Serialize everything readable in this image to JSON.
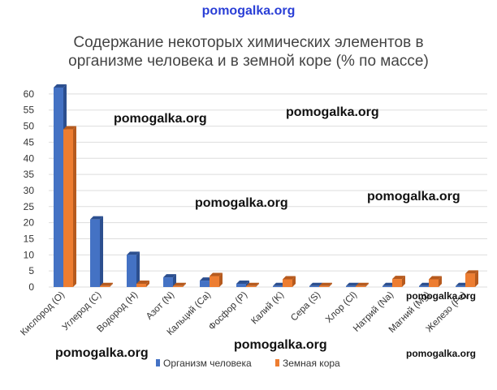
{
  "watermark_top": "pomogalka.org",
  "watermarks": [
    "pomogalka.org",
    "pomogalka.org",
    "pomogalka.org",
    "pomogalka.org",
    "pomogalka.org",
    "pomogalka.org",
    "pomogalka.org",
    "pomogalka.org"
  ],
  "colors": {
    "series1": "#4472C4",
    "series2": "#ED7D31",
    "grid": "#dddddd",
    "text": "#444444"
  },
  "chart_data": {
    "type": "bar",
    "title_line1": "Содержание некоторых химических элементов в",
    "title_line2": "организме человека и в земной коре (% по массе)",
    "categories": [
      "Кислород (O)",
      "Углерод (C)",
      "Водород (H)",
      "Азот (N)",
      "Кальций (Ca)",
      "Фосфор (P)",
      "Калий (K)",
      "Сера (S)",
      "Хлор (Cl)",
      "Натрий (Na)",
      "Магний (Mg)",
      "Железо (Fe)"
    ],
    "series": [
      {
        "name": "Организм человека",
        "values": [
          62,
          21,
          10,
          3,
          2,
          1,
          0.3,
          0.3,
          0.2,
          0.2,
          0.3,
          0.1
        ]
      },
      {
        "name": "Земная кора",
        "values": [
          49,
          0.3,
          1,
          0.1,
          3.4,
          0.1,
          2.4,
          0.1,
          0.1,
          2.5,
          2.4,
          4.2
        ]
      }
    ],
    "yticks": [
      "0",
      "5",
      "10",
      "15",
      "20",
      "25",
      "30",
      "35",
      "40",
      "45",
      "50",
      "55",
      "60"
    ],
    "ylim": [
      0,
      63
    ],
    "grid": true,
    "legend_position": "bottom"
  }
}
